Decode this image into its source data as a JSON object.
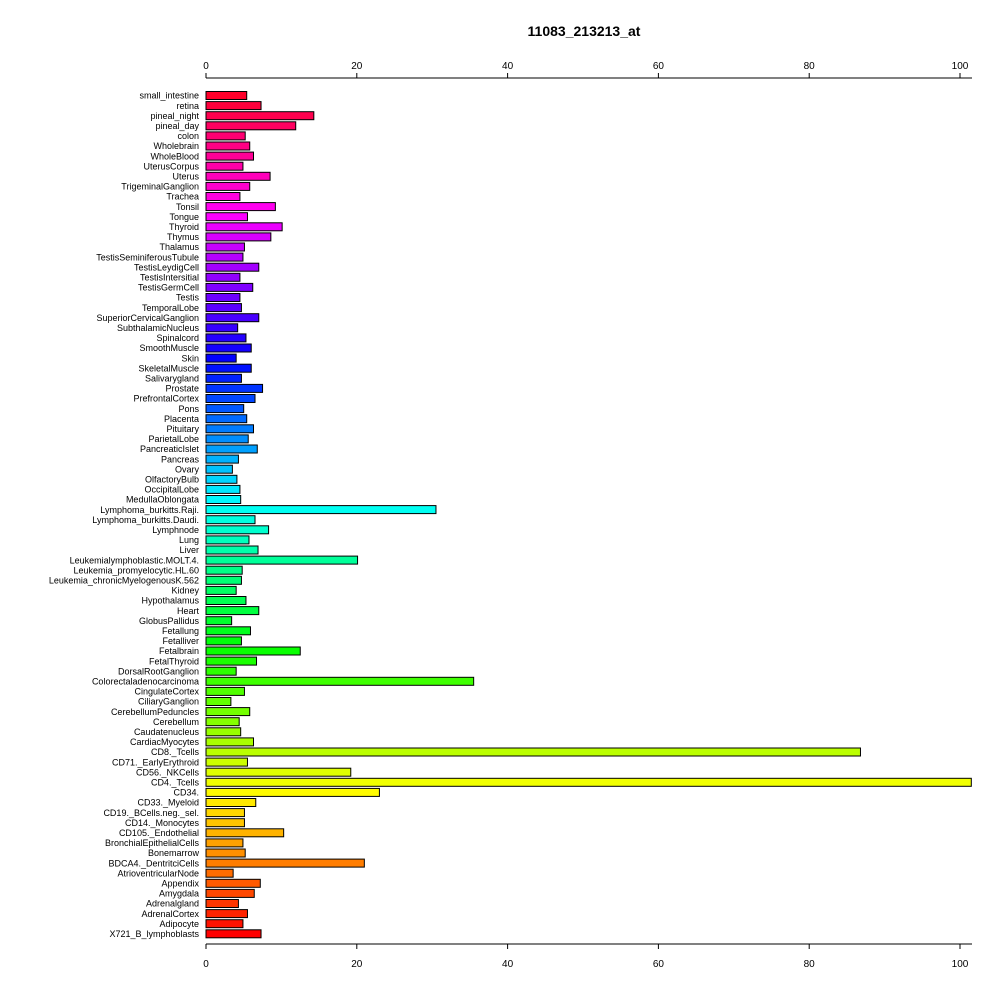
{
  "chart_data": {
    "type": "bar",
    "orientation": "horizontal",
    "title": "11083_213213_at",
    "xlabel": "",
    "ylabel": "",
    "xlim": [
      0,
      100
    ],
    "x_ticks": [
      0,
      20,
      40,
      60,
      80,
      100
    ],
    "x_tick_labels": [
      "0",
      "20",
      "40",
      "60",
      "80",
      "100"
    ],
    "axes": [
      "top",
      "bottom"
    ],
    "grid": false,
    "legend": "none",
    "color_scheme": "rainbow from red (top) through magenta, blue, cyan, green, yellow, orange back to red (bottom)",
    "categories": [
      "small_intestine",
      "retina",
      "pineal_night",
      "pineal_day",
      "colon",
      "Wholebrain",
      "WholeBlood",
      "UterusCorpus",
      "Uterus",
      "TrigeminalGanglion",
      "Trachea",
      "Tonsil",
      "Tongue",
      "Thyroid",
      "Thymus",
      "Thalamus",
      "TestisSeminiferousTubule",
      "TestisLeydigCell",
      "TestisIntersitial",
      "TestisGermCell",
      "Testis",
      "TemporalLobe",
      "SuperiorCervicalGanglion",
      "SubthalamicNucleus",
      "Spinalcord",
      "SmoothMuscle",
      "Skin",
      "SkeletalMuscle",
      "Salivarygland",
      "Prostate",
      "PrefrontalCortex",
      "Pons",
      "Placenta",
      "Pituitary",
      "ParietalLobe",
      "PancreaticIslet",
      "Pancreas",
      "Ovary",
      "OlfactoryBulb",
      "OccipitalLobe",
      "MedullaOblongata",
      "Lymphoma_burkitts.Raji.",
      "Lymphoma_burkitts.Daudi.",
      "Lymphnode",
      "Lung",
      "Liver",
      "Leukemialymphoblastic.MOLT.4.",
      "Leukemia_promyelocytic.HL.60",
      "Leukemia_chronicMyelogenousK.562",
      "Kidney",
      "Hypothalamus",
      "Heart",
      "GlobusPallidus",
      "Fetallung",
      "Fetalliver",
      "Fetalbrain",
      "FetalThyroid",
      "DorsalRootGanglion",
      "Colorectaladenocarcinoma",
      "CingulateCortex",
      "CiliaryGanglion",
      "CerebellumPeduncles",
      "Cerebellum",
      "Caudatenucleus",
      "CardiacMyocytes",
      "CD8._Tcells",
      "CD71._EarlyErythroid",
      "CD56._NKCells",
      "CD4._Tcells",
      "CD34.",
      "CD33._Myeloid",
      "CD19._BCells.neg._sel.",
      "CD14._Monocytes",
      "CD105._Endothelial",
      "BronchialEpithelialCells",
      "Bonemarrow",
      "BDCA4._DentritciCells",
      "AtrioventricularNode",
      "Appendix",
      "Amygdala",
      "Adrenalgland",
      "AdrenalCortex",
      "Adipocyte",
      "X721_B_lymphoblasts"
    ],
    "values": [
      5.4,
      7.3,
      14.3,
      11.9,
      5.2,
      5.8,
      6.3,
      4.9,
      8.5,
      5.8,
      4.5,
      9.2,
      5.5,
      10.1,
      8.6,
      5.1,
      4.9,
      7.0,
      4.5,
      6.2,
      4.5,
      4.7,
      7.0,
      4.2,
      5.3,
      6.0,
      4.0,
      6.0,
      4.7,
      7.5,
      6.5,
      5.0,
      5.4,
      6.3,
      5.6,
      6.8,
      4.3,
      3.5,
      4.1,
      4.5,
      4.6,
      30.5,
      6.5,
      8.3,
      5.7,
      6.9,
      20.1,
      4.8,
      4.7,
      4.0,
      5.3,
      7.0,
      3.4,
      5.9,
      4.7,
      12.5,
      6.7,
      4.0,
      35.5,
      5.1,
      3.3,
      5.8,
      4.4,
      4.6,
      6.3,
      86.8,
      5.5,
      19.2,
      101.5,
      23.0,
      6.6,
      5.1,
      5.1,
      10.3,
      4.9,
      5.2,
      21.0,
      3.6,
      7.2,
      6.4,
      4.3,
      5.5,
      4.9,
      7.3
    ]
  }
}
